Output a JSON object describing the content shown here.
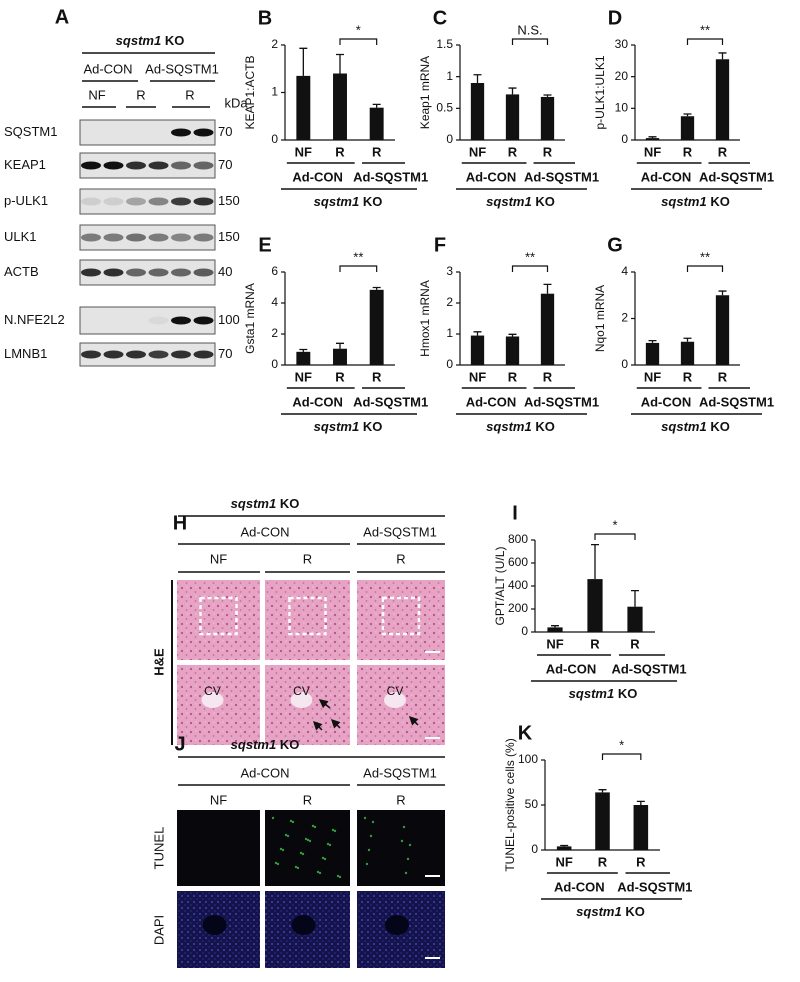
{
  "panel_a": {
    "letter": "A",
    "genotype": [
      "sqstm1",
      "KO"
    ],
    "groups": [
      "Ad-CON",
      "Ad-SQSTM1"
    ],
    "conditions": [
      "NF",
      "R",
      "R"
    ],
    "unit": "kDa",
    "rows": [
      {
        "label": "SQSTM1",
        "kda": 70
      },
      {
        "label": "KEAP1",
        "kda": 70
      },
      {
        "label": "p-ULK1",
        "kda": 150
      },
      {
        "label": "ULK1",
        "kda": 150
      },
      {
        "label": "ACTB",
        "kda": 40
      },
      {
        "label": "N.NFE2L2",
        "kda": 100
      },
      {
        "label": "LMNB1",
        "kda": 70
      }
    ]
  },
  "chart_data": [
    {
      "type": "bar",
      "letter": "B",
      "ylabel": "KEAP1:ACTB",
      "categories": [
        "NF",
        "R",
        "R"
      ],
      "values": [
        1.35,
        1.4,
        0.68
      ],
      "errors": [
        0.58,
        0.4,
        0.07
      ],
      "color": "#111111",
      "ylim": [
        0,
        2
      ],
      "yticks": [
        0,
        1,
        2
      ],
      "significance": "*",
      "groups": [
        "Ad-CON",
        "Ad-SQSTM1"
      ],
      "genotype": [
        "sqstm1",
        "KO"
      ]
    },
    {
      "type": "bar",
      "letter": "C",
      "ylabel": "Keap1 mRNA",
      "categories": [
        "NF",
        "R",
        "R"
      ],
      "values": [
        0.9,
        0.72,
        0.68
      ],
      "errors": [
        0.13,
        0.1,
        0.03
      ],
      "color": "#111111",
      "ylim": [
        0,
        1.5
      ],
      "yticks": [
        0,
        0.5,
        1,
        1.5
      ],
      "significance": "N.S.",
      "groups": [
        "Ad-CON",
        "Ad-SQSTM1"
      ],
      "genotype": [
        "sqstm1",
        "KO"
      ]
    },
    {
      "type": "bar",
      "letter": "D",
      "ylabel": "p-ULK1:ULK1",
      "categories": [
        "NF",
        "R",
        "R"
      ],
      "values": [
        0.6,
        7.5,
        25.5
      ],
      "errors": [
        0.4,
        0.7,
        2
      ],
      "color": "#111111",
      "ylim": [
        0,
        30
      ],
      "yticks": [
        0,
        10,
        20,
        30
      ],
      "significance": "**",
      "groups": [
        "Ad-CON",
        "Ad-SQSTM1"
      ],
      "genotype": [
        "sqstm1",
        "KO"
      ]
    },
    {
      "type": "bar",
      "letter": "E",
      "ylabel": "Gsta1 mRNA",
      "categories": [
        "NF",
        "R",
        "R"
      ],
      "values": [
        0.85,
        1.05,
        4.85
      ],
      "errors": [
        0.15,
        0.35,
        0.15
      ],
      "color": "#111111",
      "ylim": [
        0,
        6
      ],
      "yticks": [
        0,
        2,
        4,
        6
      ],
      "significance": "**",
      "groups": [
        "Ad-CON",
        "Ad-SQSTM1"
      ],
      "genotype": [
        "sqstm1",
        "KO"
      ]
    },
    {
      "type": "bar",
      "letter": "F",
      "ylabel": "Hmox1 mRNA",
      "categories": [
        "NF",
        "R",
        "R"
      ],
      "values": [
        0.95,
        0.92,
        2.3
      ],
      "errors": [
        0.12,
        0.07,
        0.3
      ],
      "color": "#111111",
      "ylim": [
        0,
        3
      ],
      "yticks": [
        0,
        1,
        2,
        3
      ],
      "significance": "**",
      "groups": [
        "Ad-CON",
        "Ad-SQSTM1"
      ],
      "genotype": [
        "sqstm1",
        "KO"
      ]
    },
    {
      "type": "bar",
      "letter": "G",
      "ylabel": "Nqo1 mRNA",
      "categories": [
        "NF",
        "R",
        "R"
      ],
      "values": [
        0.95,
        1.0,
        3.0
      ],
      "errors": [
        0.1,
        0.15,
        0.18
      ],
      "color": "#111111",
      "ylim": [
        0,
        4
      ],
      "yticks": [
        0,
        2,
        4
      ],
      "significance": "**",
      "groups": [
        "Ad-CON",
        "Ad-SQSTM1"
      ],
      "genotype": [
        "sqstm1",
        "KO"
      ]
    },
    {
      "type": "bar",
      "letter": "I",
      "ylabel": "GPT/ALT (U/L)",
      "categories": [
        "NF",
        "R",
        "R"
      ],
      "values": [
        40,
        460,
        220
      ],
      "errors": [
        15,
        300,
        140
      ],
      "color": "#111111",
      "ylim": [
        0,
        800
      ],
      "yticks": [
        0,
        200,
        400,
        600,
        800
      ],
      "significance": "*",
      "groups": [
        "Ad-CON",
        "Ad-SQSTM1"
      ],
      "genotype": [
        "sqstm1",
        "KO"
      ]
    },
    {
      "type": "bar",
      "letter": "K",
      "ylabel": "TUNEL-positive cells (%)",
      "categories": [
        "NF",
        "R",
        "R"
      ],
      "values": [
        4,
        64,
        50
      ],
      "errors": [
        1,
        3,
        4
      ],
      "color": "#111111",
      "ylim": [
        0,
        100
      ],
      "yticks": [
        0,
        50,
        100
      ],
      "significance": "*",
      "groups": [
        "Ad-CON",
        "Ad-SQSTM1"
      ],
      "genotype": [
        "sqstm1",
        "KO"
      ]
    }
  ],
  "panel_h": {
    "letter": "H",
    "genotype": [
      "sqstm1",
      "KO"
    ],
    "groups": [
      "Ad-CON",
      "Ad-SQSTM1"
    ],
    "conditions": [
      "NF",
      "R",
      "R"
    ],
    "stain": "H&E",
    "vessel_labels": [
      "CV",
      "CV",
      "CV"
    ]
  },
  "panel_j": {
    "letter": "J",
    "genotype": [
      "sqstm1",
      "KO"
    ],
    "groups": [
      "Ad-CON",
      "Ad-SQSTM1"
    ],
    "conditions": [
      "NF",
      "R",
      "R"
    ],
    "stains": [
      "TUNEL",
      "DAPI"
    ]
  }
}
